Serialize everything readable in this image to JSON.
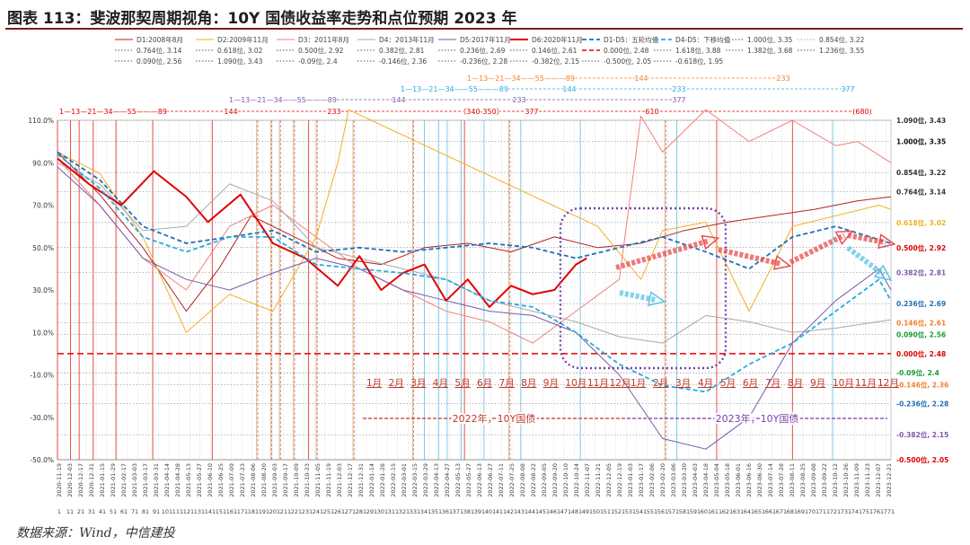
{
  "title": "图表 113：斐波那契周期视角：10Y 国债收益率走势和点位预期 2023 年",
  "source": "数据来源：Wind，中信建投",
  "chart_data": {
    "type": "line",
    "ylim": [
      -50,
      110
    ],
    "yticks": [
      "110.0%",
      "90.0%",
      "70.0%",
      "50.0%",
      "30.0%",
      "10.0%",
      "-10.0%",
      "-30.0%",
      "-50.0%"
    ],
    "ytick_values": [
      110,
      90,
      70,
      50,
      30,
      10,
      -10,
      -30,
      -50
    ],
    "x_dates": [
      "2020-11-19",
      "2020-12-03",
      "2020-12-17",
      "2020-12-31",
      "2021-01-15",
      "2021-01-29",
      "2021-02-17",
      "2021-03-03",
      "2021-03-17",
      "2021-03-31",
      "2021-04-14",
      "2021-04-28",
      "2021-05-13",
      "2021-05-27",
      "2021-06-10",
      "2021-06-25",
      "2021-07-09",
      "2021-07-23",
      "2021-08-06",
      "2021-08-20",
      "2021-09-03",
      "2021-09-17",
      "2021-10-09",
      "2021-10-23",
      "2021-11-05",
      "2021-11-19",
      "2021-12-03",
      "2021-12-17",
      "2021-12-31",
      "2022-01-14",
      "2022-01-28",
      "2022-02-15",
      "2022-03-01",
      "2022-03-15",
      "2022-03-29",
      "2022-04-13",
      "2022-04-27",
      "2022-05-13",
      "2022-05-27",
      "2022-06-13",
      "2022-06-27",
      "2022-07-11",
      "2022-07-25",
      "2022-08-08",
      "2022-08-22",
      "2022-09-05",
      "2022-09-20",
      "2022-10-10",
      "2022-10-24",
      "2022-11-07",
      "2022-11-21",
      "2022-12-05",
      "2022-12-19",
      "2023-01-03",
      "2023-01-17",
      "2023-02-06",
      "2023-02-20",
      "2023-03-06",
      "2023-03-20",
      "2023-04-03",
      "2023-04-18",
      "2023-05-04",
      "2023-05-18",
      "2023-06-01",
      "2023-06-16",
      "2023-06-30",
      "2023-07-14",
      "2023-07-28",
      "2023-08-11",
      "2023-08-25",
      "2023-09-08",
      "2023-09-22",
      "2023-10-12",
      "2023-10-26",
      "2023-11-09",
      "2023-11-23",
      "2023-12-07",
      "2023-12-21"
    ],
    "x_numbers": [
      "1",
      "11",
      "21",
      "31",
      "41",
      "51",
      "61",
      "71",
      "81",
      "91",
      "101",
      "111",
      "121",
      "131",
      "141",
      "151",
      "161",
      "171",
      "181",
      "191",
      "201",
      "211",
      "221",
      "231",
      "241",
      "251",
      "261",
      "271",
      "281",
      "291",
      "301",
      "311",
      "321",
      "331",
      "341",
      "351",
      "361",
      "371",
      "381",
      "391",
      "401",
      "411",
      "421",
      "431",
      "441",
      "451",
      "461",
      "471",
      "481",
      "491",
      "501",
      "511",
      "521",
      "531",
      "541",
      "551",
      "561",
      "571",
      "581",
      "591",
      "601",
      "611",
      "621",
      "631",
      "641",
      "651",
      "661",
      "671",
      "681",
      "691",
      "701",
      "711",
      "721",
      "731",
      "741",
      "751",
      "761",
      "771"
    ],
    "legend": [
      {
        "label": "D1:2008年8月",
        "color": "#b22222",
        "dash": "solid",
        "width": 1
      },
      {
        "label": "D2:2009年11月",
        "color": "#f2b01e",
        "dash": "solid",
        "width": 1
      },
      {
        "label": "D3：2011年8月",
        "color": "#f08080",
        "dash": "solid",
        "width": 1
      },
      {
        "label": "D4：2013年11月",
        "color": "#a9a9a9",
        "dash": "solid",
        "width": 1
      },
      {
        "label": "D5:2017年11月",
        "color": "#7b5aa6",
        "dash": "solid",
        "width": 1
      },
      {
        "label": "D6:2020年11月",
        "color": "#e00000",
        "dash": "solid",
        "width": 2
      },
      {
        "label": "D1-D5：五轮均值",
        "color": "#1f6fb5",
        "dash": "dashed",
        "width": 1.8
      },
      {
        "label": "D4-D5：下移均值",
        "color": "#27aae1",
        "dash": "dashed",
        "width": 1.8
      },
      {
        "label": "1.000位, 3.35",
        "color": "#555555",
        "dash": "dotted",
        "width": 1
      },
      {
        "label": "0.854位, 3.22",
        "color": "#aaaaaa",
        "dash": "dotted",
        "width": 1
      },
      {
        "label": "0.764位, 3.14",
        "color": "#555555",
        "dash": "dotted",
        "width": 1
      },
      {
        "label": "0.618位, 3.02",
        "color": "#555555",
        "dash": "dotted",
        "width": 1
      },
      {
        "label": "0.500位, 2.92",
        "color": "#555555",
        "dash": "dotted",
        "width": 1
      },
      {
        "label": "0.382位, 2.81",
        "color": "#555555",
        "dash": "dotted",
        "width": 1
      },
      {
        "label": "0.236位, 2.69",
        "color": "#555555",
        "dash": "dotted",
        "width": 1
      },
      {
        "label": "0.146位, 2.61",
        "color": "#555555",
        "dash": "dotted",
        "width": 1
      },
      {
        "label": "0.000位, 2.48",
        "color": "#e00000",
        "dash": "dashed",
        "width": 1.5
      },
      {
        "label": "1.618位, 3.88",
        "color": "#555555",
        "dash": "dotted",
        "width": 1
      },
      {
        "label": "1.382位, 3.68",
        "color": "#555555",
        "dash": "dotted",
        "width": 1
      },
      {
        "label": "1.236位, 3.55",
        "color": "#555555",
        "dash": "dotted",
        "width": 1
      },
      {
        "label": "0.090位, 2.56",
        "color": "#555555",
        "dash": "dotted",
        "width": 1
      },
      {
        "label": "1.090位, 3.43",
        "color": "#555555",
        "dash": "dotted",
        "width": 1
      },
      {
        "label": "-0.09位, 2.4",
        "color": "#555555",
        "dash": "dotted",
        "width": 1
      },
      {
        "label": "-0.146位, 2.36",
        "color": "#555555",
        "dash": "dotted",
        "width": 1
      },
      {
        "label": "-0.236位, 2.28",
        "color": "#555555",
        "dash": "dotted",
        "width": 1
      },
      {
        "label": "-0.382位, 2.15",
        "color": "#555555",
        "dash": "dotted",
        "width": 1
      },
      {
        "label": "-0.500位, 2.05",
        "color": "#555555",
        "dash": "dotted",
        "width": 1
      },
      {
        "label": "-0.618位, 1.95",
        "color": "#555555",
        "dash": "dotted",
        "width": 1
      }
    ],
    "right_labels": [
      {
        "text": "1.090位, 3.43",
        "y": 110,
        "color": "#333333"
      },
      {
        "text": "1.000位, 3.35",
        "y": 100,
        "color": "#111111"
      },
      {
        "text": "0.854位, 3.22",
        "y": 85.4,
        "color": "#333333"
      },
      {
        "text": "0.764位, 3.14",
        "y": 76.4,
        "color": "#333333"
      },
      {
        "text": "0.618位, 3.02",
        "y": 61.8,
        "color": "#f2b01e"
      },
      {
        "text": "0.500位, 2.92",
        "y": 50,
        "color": "#e00000"
      },
      {
        "text": "0.382位, 2.81",
        "y": 38.2,
        "color": "#7b5aa6"
      },
      {
        "text": "0.236位, 2.69",
        "y": 23.6,
        "color": "#1f6fb5"
      },
      {
        "text": "0.146位, 2.61",
        "y": 14.6,
        "color": "#f08030"
      },
      {
        "text": "0.090位, 2.56",
        "y": 9,
        "color": "#1a9a3a"
      },
      {
        "text": "0.000位, 2.48",
        "y": 0,
        "color": "#e00000"
      },
      {
        "text": "-0.09位, 2.4",
        "y": -9,
        "color": "#1a9a3a"
      },
      {
        "text": "-0.146位, 2.36",
        "y": -14.6,
        "color": "#f08030"
      },
      {
        "text": "-0.236位, 2.28",
        "y": -23.6,
        "color": "#1f6fb5"
      },
      {
        "text": "-0.382位, 2.15",
        "y": -38.2,
        "color": "#7b5aa6"
      },
      {
        "text": "-0.500位, 2.05",
        "y": -50,
        "color": "#e00000"
      }
    ],
    "fib_rows": [
      {
        "text": "1—13—21—34——55———89",
        "color": "#f08030"
      },
      {
        "text": "144",
        "color": "#f08030"
      },
      {
        "text": "233",
        "color": "#f08030"
      },
      {
        "text": "1—13—21—34——55———89",
        "color": "#27aae1"
      },
      {
        "text": "144",
        "color": "#27aae1"
      },
      {
        "text": "233",
        "color": "#27aae1"
      },
      {
        "text": "377",
        "color": "#27aae1"
      },
      {
        "text": "1—13—21—34——55———89",
        "color": "#7b5aa6"
      },
      {
        "text": "144",
        "color": "#7b5aa6"
      },
      {
        "text": "233",
        "color": "#7b5aa6"
      },
      {
        "text": "377",
        "color": "#7b5aa6"
      },
      {
        "text": "1—13—21—34——55———89",
        "color": "#e00000"
      },
      {
        "text": "144",
        "color": "#e00000"
      },
      {
        "text": "233",
        "color": "#e00000"
      },
      {
        "text": "（340-350）",
        "color": "#e00000"
      },
      {
        "text": "377",
        "color": "#e00000"
      },
      {
        "text": "610",
        "color": "#e00000"
      },
      {
        "text": "(680)",
        "color": "#e00000"
      }
    ],
    "months_2022": [
      "1月",
      "2月",
      "3月",
      "4月",
      "5月",
      "6月",
      "7月",
      "8月",
      "9月",
      "10月",
      "11月",
      "12月"
    ],
    "months_2023": [
      "1月",
      "2月",
      "3月",
      "4月",
      "5月",
      "6月",
      "7月",
      "8月",
      "9月",
      "10月",
      "11月",
      "12月"
    ],
    "year_labels": [
      {
        "text": "2022年，10Y国债",
        "color": "#c0392b"
      },
      {
        "text": "2023年，10Y国债",
        "color": "#7b3fa6"
      }
    ],
    "series": [
      {
        "name": "D1:2008年8月",
        "x": [
          1,
          40,
          80,
          120,
          150,
          180,
          220,
          260,
          300,
          340,
          380,
          420,
          460,
          500,
          540,
          580,
          620,
          660,
          700,
          740,
          771
        ],
        "values": [
          95,
          75,
          50,
          20,
          40,
          65,
          55,
          45,
          42,
          50,
          52,
          48,
          55,
          50,
          52,
          58,
          62,
          65,
          68,
          72,
          74
        ]
      },
      {
        "name": "D2:2009年11月",
        "x": [
          1,
          40,
          80,
          120,
          160,
          200,
          240,
          260,
          270,
          500,
          540,
          560,
          600,
          640,
          680,
          720,
          760,
          771
        ],
        "values": [
          95,
          85,
          55,
          10,
          28,
          20,
          55,
          90,
          115,
          60,
          35,
          58,
          62,
          20,
          60,
          65,
          70,
          68
        ]
      },
      {
        "name": "D3：2011年8月",
        "x": [
          1,
          40,
          80,
          120,
          160,
          200,
          240,
          280,
          320,
          360,
          400,
          440,
          480,
          520,
          540,
          560,
          600,
          640,
          680,
          720,
          740,
          771
        ],
        "values": [
          92,
          70,
          45,
          30,
          60,
          70,
          55,
          40,
          30,
          20,
          15,
          5,
          20,
          35,
          112,
          95,
          115,
          100,
          110,
          98,
          100,
          90
        ]
      },
      {
        "name": "D4：2013年11月",
        "x": [
          1,
          40,
          80,
          120,
          160,
          200,
          240,
          280,
          320,
          360,
          400,
          440,
          480,
          520,
          560,
          600,
          640,
          680,
          720,
          771
        ],
        "values": [
          90,
          80,
          58,
          60,
          80,
          72,
          50,
          45,
          40,
          35,
          25,
          20,
          15,
          8,
          5,
          18,
          15,
          10,
          12,
          16
        ]
      },
      {
        "name": "D5:2017年11月",
        "x": [
          1,
          40,
          80,
          120,
          160,
          200,
          240,
          280,
          320,
          360,
          400,
          440,
          480,
          520,
          560,
          600,
          640,
          680,
          720,
          760,
          771
        ],
        "values": [
          88,
          70,
          45,
          35,
          30,
          38,
          45,
          40,
          30,
          25,
          20,
          18,
          10,
          -10,
          -40,
          -45,
          -30,
          5,
          25,
          40,
          30
        ]
      },
      {
        "name": "D6:2020年11月",
        "x": [
          1,
          30,
          60,
          90,
          120,
          140,
          170,
          200,
          230,
          260,
          280,
          300,
          320,
          340,
          360,
          380,
          400,
          420,
          440,
          460,
          480,
          490
        ],
        "values": [
          92,
          80,
          70,
          86,
          74,
          62,
          75,
          52,
          45,
          32,
          46,
          30,
          38,
          42,
          25,
          35,
          22,
          32,
          28,
          30,
          42,
          45
        ]
      },
      {
        "name": "D1-D5：五轮均值",
        "x": [
          1,
          40,
          80,
          120,
          160,
          200,
          240,
          280,
          320,
          360,
          400,
          440,
          480,
          520,
          560,
          600,
          640,
          680,
          720,
          771
        ],
        "values": [
          95,
          82,
          60,
          52,
          55,
          58,
          48,
          50,
          48,
          50,
          52,
          50,
          45,
          50,
          55,
          48,
          40,
          55,
          60,
          52
        ]
      },
      {
        "name": "D4-D5：下移均值",
        "x": [
          1,
          40,
          80,
          120,
          160,
          200,
          240,
          280,
          320,
          360,
          400,
          440,
          480,
          520,
          560,
          600,
          640,
          680,
          720,
          760,
          771
        ],
        "values": [
          94,
          78,
          55,
          48,
          55,
          55,
          42,
          40,
          38,
          35,
          25,
          22,
          10,
          -5,
          -15,
          -18,
          -5,
          5,
          20,
          35,
          25
        ]
      }
    ]
  }
}
